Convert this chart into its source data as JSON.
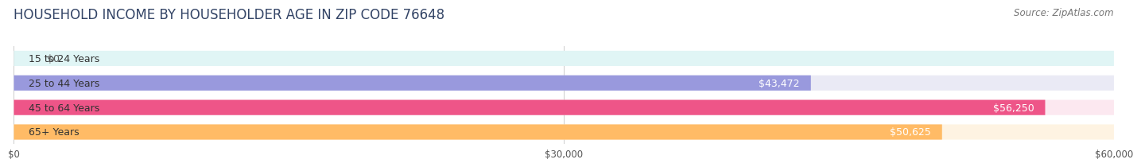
{
  "title": "HOUSEHOLD INCOME BY HOUSEHOLDER AGE IN ZIP CODE 76648",
  "source": "Source: ZipAtlas.com",
  "categories": [
    "15 to 24 Years",
    "25 to 44 Years",
    "45 to 64 Years",
    "65+ Years"
  ],
  "values": [
    0,
    43472,
    56250,
    50625
  ],
  "bar_colors": [
    "#66d9d9",
    "#9999dd",
    "#ee5588",
    "#ffbb66"
  ],
  "bg_colors": [
    "#e0f5f5",
    "#eaeaf5",
    "#fce8f0",
    "#fef3e2"
  ],
  "value_labels": [
    "$0",
    "$43,472",
    "$56,250",
    "$50,625"
  ],
  "xlim": [
    0,
    60000
  ],
  "xticks": [
    0,
    30000,
    60000
  ],
  "xticklabels": [
    "$0",
    "$30,000",
    "$60,000"
  ],
  "title_fontsize": 12,
  "source_fontsize": 8.5,
  "label_fontsize": 9,
  "value_fontsize": 9,
  "background_color": "#ffffff",
  "bar_height": 0.62,
  "bar_gap": 1.0
}
